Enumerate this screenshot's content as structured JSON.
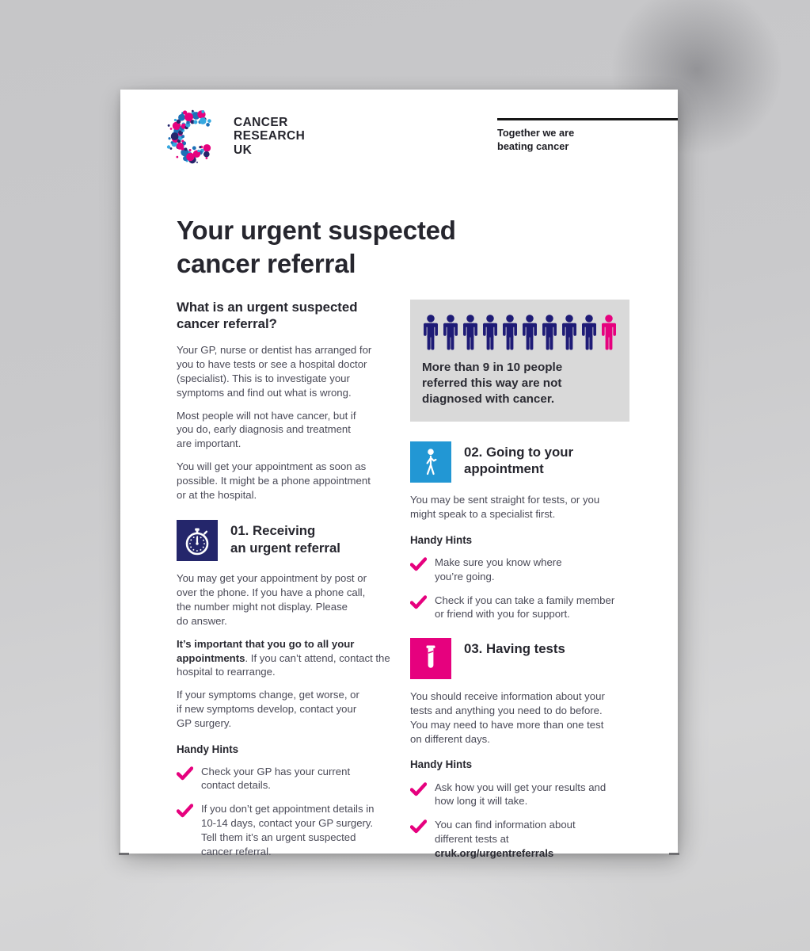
{
  "colors": {
    "navy": "#24266b",
    "navy_person": "#1e1b76",
    "pink": "#e6017e",
    "light_blue": "#2297d4",
    "gray_box": "#d9d9d9",
    "heading_text": "#26262e",
    "body_text": "#4a4a57",
    "rule_black": "#161616",
    "logo_blue": "#1d70b7",
    "logo_light_blue": "#35a8e0"
  },
  "header": {
    "logo_text": "CANCER\nRESEARCH\nUK",
    "tagline": "Together we are\nbeating cancer"
  },
  "title": "Your urgent suspected\ncancer referral",
  "intro": {
    "heading": "What is an urgent suspected\ncancer referral?",
    "p1": "Your GP, nurse or dentist has arranged for\nyou to have tests or see a hospital doctor\n(specialist). This is to investigate your\nsymptoms and find out what is wrong.",
    "p2": "Most people will not have cancer, but if\nyou do, early diagnosis and treatment\nare important.",
    "p3": "You will get your appointment as soon as\npossible. It might be a phone appointment\nor at the hospital."
  },
  "infographic": {
    "people_total": 10,
    "people_pink": 1,
    "caption": "More than 9 in 10 people\nreferred this way are not\ndiagnosed with cancer."
  },
  "section1": {
    "heading": "01. Receiving\nan urgent referral",
    "p1": "You may get your appointment by post or\nover the phone. If you have a phone call,\nthe number might not display. Please\ndo answer.",
    "p2_bold": "It’s important that you go to all your appointments",
    "p2_rest": ". If you can’t attend, contact the hospital to rearrange.",
    "p3": "If your symptoms change, get worse, or\nif new symptoms develop, contact your\nGP surgery.",
    "handy_hints": "Handy Hints",
    "hint1": "Check your GP has your current\ncontact details.",
    "hint2": "If you don’t get appointment details in\n10-14 days, contact your GP surgery.\nTell them it’s an urgent suspected\ncancer referral."
  },
  "section2": {
    "heading": "02. Going to your\nappointment",
    "p1": "You may be sent straight for tests, or you\nmight speak to a specialist first.",
    "handy_hints": "Handy Hints",
    "hint1": "Make sure you know where\nyou’re going.",
    "hint2": "Check if you can take a family member\nor friend with you for support."
  },
  "section3": {
    "heading": "03. Having tests",
    "p1": "You should receive information about your\ntests and anything you need to do before.\nYou may need to have more than one test\non different days.",
    "handy_hints": "Handy Hints",
    "hint1": "Ask how you will get your results and\nhow long it will take.",
    "hint2_text": "You can find information about\ndifferent tests at",
    "hint2_link": "cruk.org/urgentreferrals"
  }
}
